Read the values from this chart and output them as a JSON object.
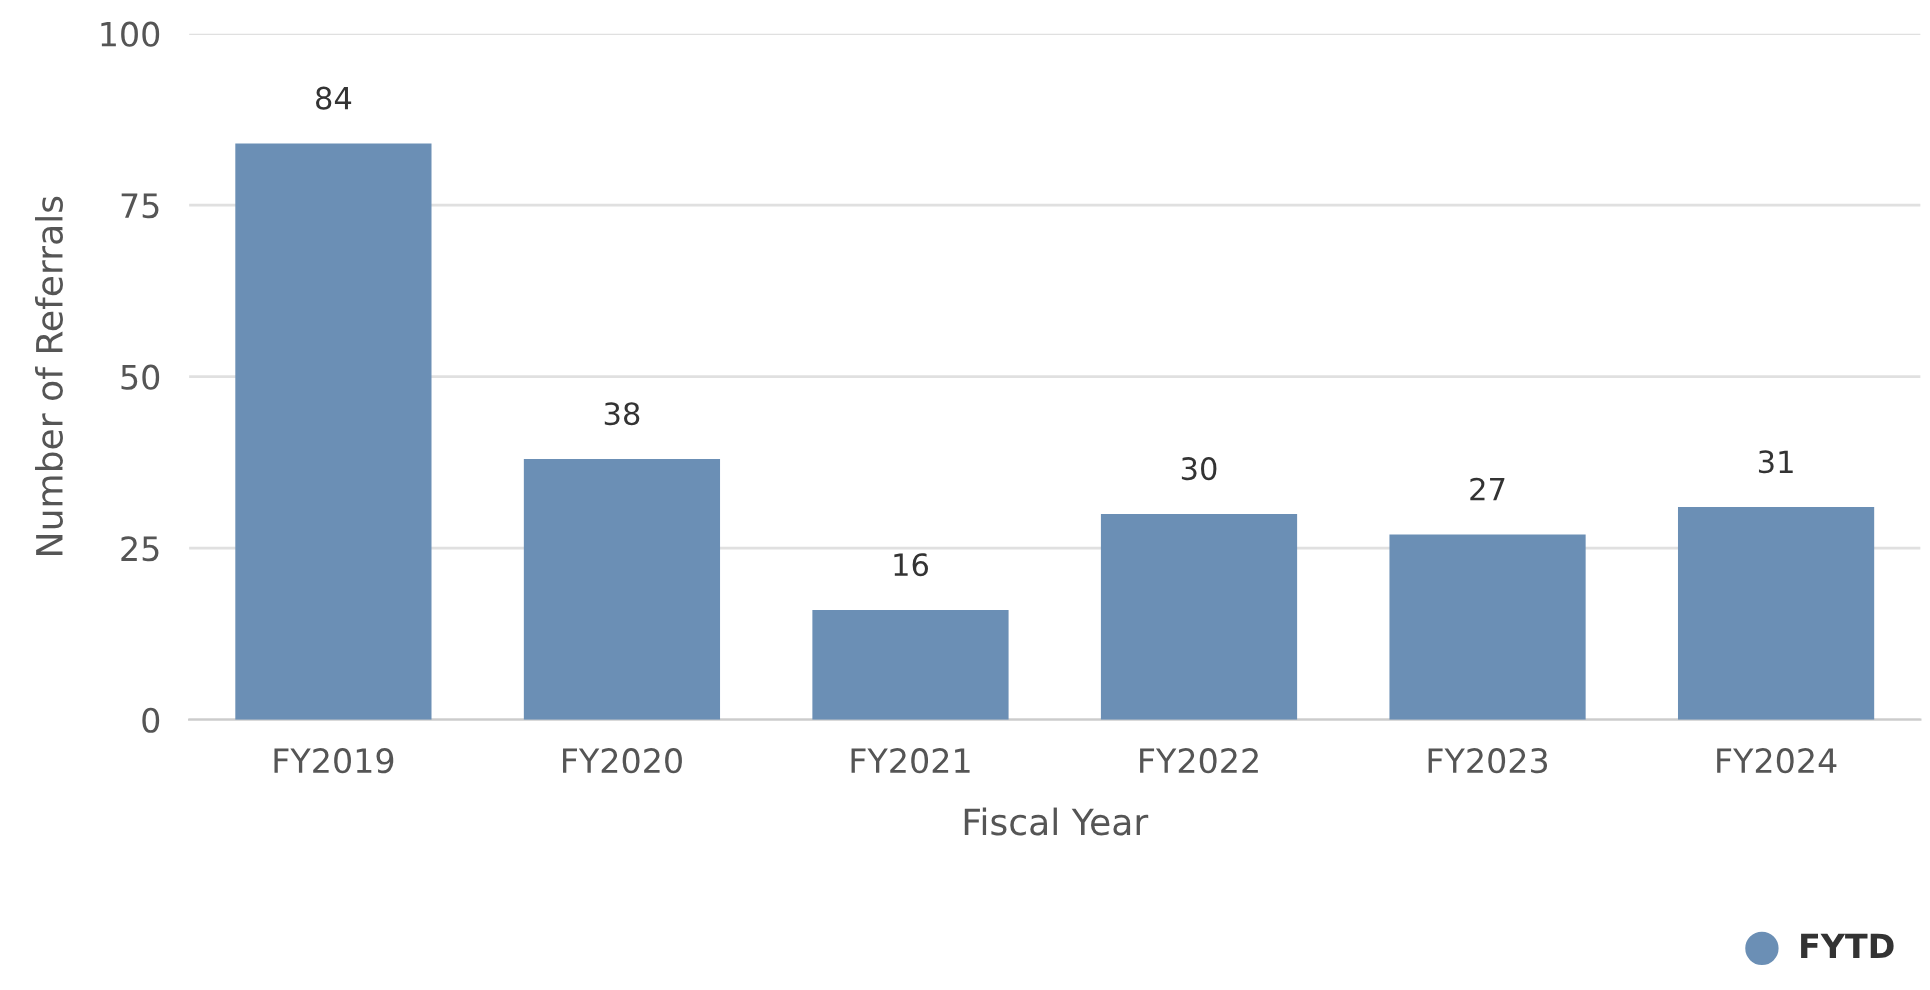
{
  "chart_data": {
    "type": "bar",
    "xlabel": "Fiscal Year",
    "ylabel": "Number of Referrals",
    "categories": [
      "FY2019",
      "FY2020",
      "FY2021",
      "FY2022",
      "FY2023",
      "FY2024"
    ],
    "series": [
      {
        "name": "FYTD",
        "color": "#6b8fb5",
        "values": [
          84,
          38,
          16,
          30,
          27,
          31
        ]
      }
    ],
    "ylim": [
      0,
      100
    ],
    "yticks": [
      0,
      25,
      50,
      75,
      100
    ],
    "grid": "y",
    "data_labels": true,
    "legend": "bottom right"
  }
}
